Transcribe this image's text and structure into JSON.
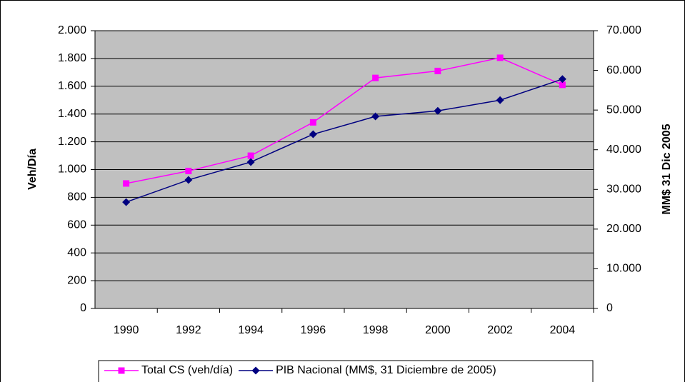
{
  "chart_data": {
    "type": "line",
    "categories": [
      "1990",
      "1992",
      "1994",
      "1996",
      "1998",
      "2000",
      "2002",
      "2004"
    ],
    "series": [
      {
        "name": "Total CS (veh/día)",
        "color": "#ff00ff",
        "marker": "square",
        "values": [
          900,
          990,
          1100,
          1340,
          1660,
          1710,
          1805,
          1610
        ]
      },
      {
        "name": "PIB Nacional (MM$, 31 Diciembre de 2005)",
        "color": "#000080",
        "marker": "diamond",
        "axis": "y2",
        "values": [
          26800,
          32400,
          36900,
          43900,
          48400,
          49800,
          52500,
          57800
        ]
      }
    ],
    "ylabel": "Veh/Día",
    "y2label": "MM$ 31 Dic 2005",
    "ylim": [
      0,
      2000
    ],
    "yticks": [
      0,
      200,
      400,
      600,
      800,
      {
        "value": 1000,
        "label": "1.000"
      },
      {
        "value": 1200,
        "label": "1.200"
      },
      {
        "value": 1400,
        "label": "1.400"
      },
      {
        "value": 1600,
        "label": "1.600"
      },
      {
        "value": 1800,
        "label": "1.800"
      },
      {
        "value": 2000,
        "label": "2.000"
      }
    ],
    "y2lim": [
      0,
      70000
    ],
    "y2ticks": [
      0,
      {
        "value": 10000,
        "label": "10.000"
      },
      {
        "value": 20000,
        "label": "20.000"
      },
      {
        "value": 30000,
        "label": "30.000"
      },
      {
        "value": 40000,
        "label": "40.000"
      },
      {
        "value": 50000,
        "label": "50.000"
      },
      {
        "value": 60000,
        "label": "60.000"
      },
      {
        "value": 70000,
        "label": "70.000"
      }
    ],
    "grid": true,
    "legend": "bottom",
    "plot_background": "#c0c0c0"
  }
}
